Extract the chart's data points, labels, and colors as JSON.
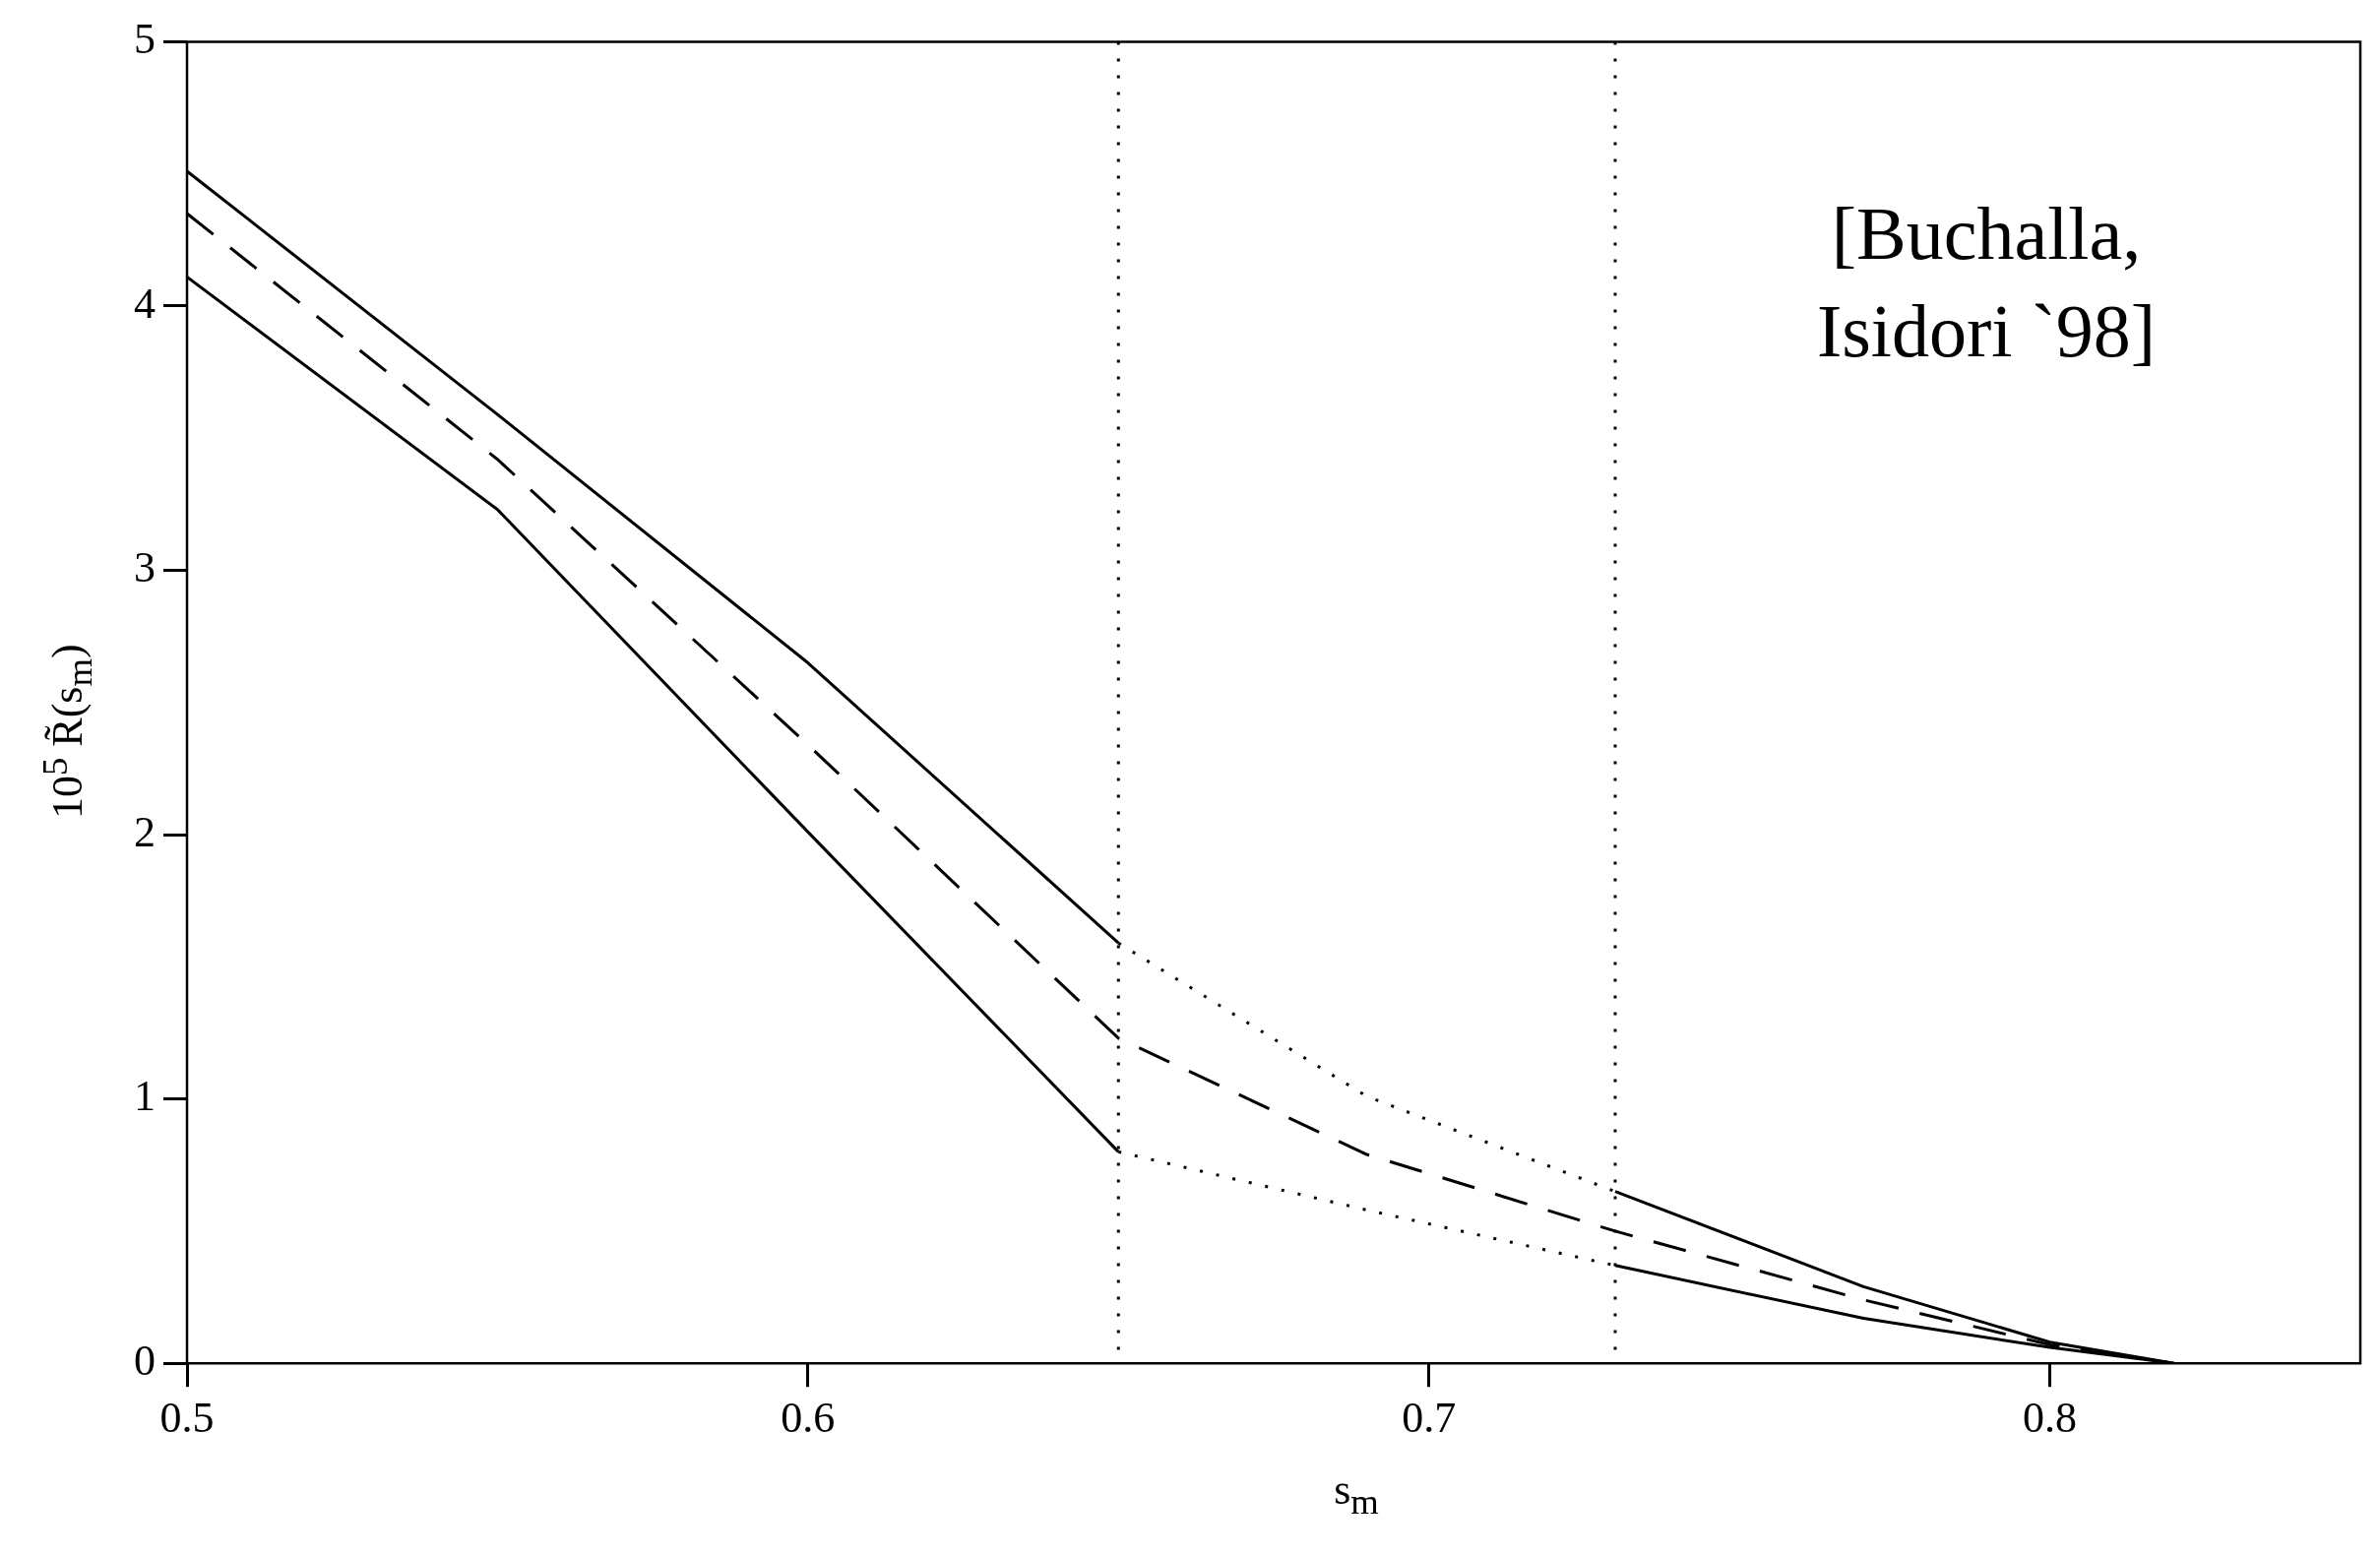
{
  "chart_data": {
    "type": "line",
    "xlabel": "s$_{m}$",
    "ylabel": "10$^{5}$ R̃(s$_{m}$)",
    "annotations": [
      "[Buchalla, Isidori `98]"
    ],
    "xlim": [
      0.5,
      0.85
    ],
    "ylim": [
      0,
      5
    ],
    "xticks": [
      0.5,
      0.6,
      0.7,
      0.8
    ],
    "yticks": [
      0,
      1,
      2,
      3,
      4,
      5
    ],
    "grid": false,
    "legend": false,
    "series": [
      {
        "color": "#000000",
        "line_style": "solid",
        "x": [
          0.5,
          0.55,
          0.6,
          0.65
        ],
        "values": [
          4.51,
          3.59,
          2.65,
          1.59
        ]
      },
      {
        "color": "#000000",
        "line_style": "dotted",
        "x": [
          0.65,
          0.69,
          0.73
        ],
        "values": [
          1.59,
          1.01,
          0.65
        ]
      },
      {
        "color": "#000000",
        "line_style": "solid",
        "x": [
          0.73,
          0.77,
          0.8,
          0.82
        ],
        "values": [
          0.65,
          0.29,
          0.08,
          0
        ]
      },
      {
        "color": "#000000",
        "line_style": "dashed",
        "x": [
          0.5,
          0.55,
          0.6,
          0.65,
          0.69,
          0.73,
          0.77,
          0.8,
          0.82
        ],
        "values": [
          4.35,
          3.42,
          2.34,
          1.23,
          0.79,
          0.5,
          0.24,
          0.07,
          0
        ]
      },
      {
        "color": "#000000",
        "line_style": "solid",
        "x": [
          0.5,
          0.55,
          0.6,
          0.65
        ],
        "values": [
          4.11,
          3.23,
          2.01,
          0.8
        ]
      },
      {
        "color": "#000000",
        "line_style": "dotted",
        "x": [
          0.65,
          0.69,
          0.73
        ],
        "values": [
          0.8,
          0.58,
          0.37
        ]
      },
      {
        "color": "#000000",
        "line_style": "solid",
        "x": [
          0.73,
          0.77,
          0.8,
          0.82
        ],
        "values": [
          0.37,
          0.17,
          0.06,
          0
        ]
      }
    ],
    "ref_lines": [
      {
        "axis": "x",
        "value": 0.65,
        "line_style": "dotted",
        "color": "#000000"
      },
      {
        "axis": "x",
        "value": 0.73,
        "line_style": "dotted",
        "color": "#000000"
      }
    ]
  }
}
